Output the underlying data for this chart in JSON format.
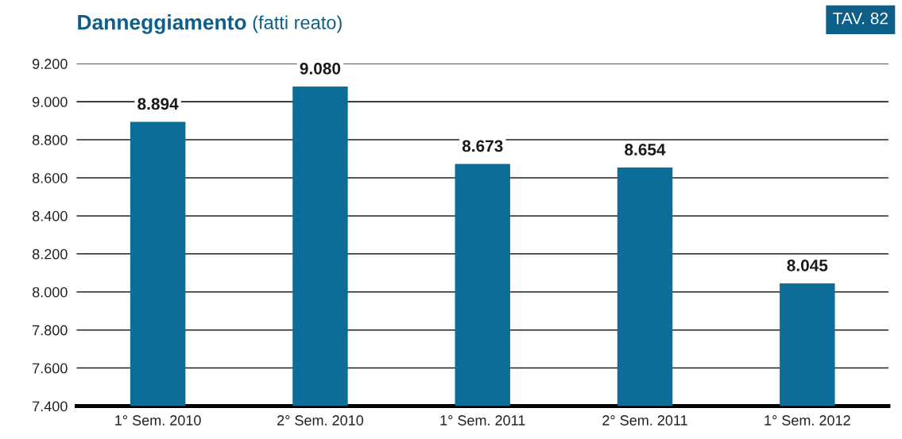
{
  "chart_data": {
    "type": "bar",
    "title": "Danneggiamento",
    "subtitle": "(fatti reato)",
    "annotations": [
      "TAV. 82"
    ],
    "categories": [
      "1° Sem. 2010",
      "2° Sem. 2010",
      "1° Sem. 2011",
      "2° Sem. 2011",
      "1° Sem. 2012"
    ],
    "values": [
      8894,
      9080,
      8673,
      8654,
      8045
    ],
    "value_labels": [
      "8.894",
      "9.080",
      "8.673",
      "8.654",
      "8.045"
    ],
    "color": "#0d6d99",
    "ylim": [
      7400,
      9200
    ],
    "yticks": [
      {
        "value": 7400,
        "label": "7.400"
      },
      {
        "value": 7600,
        "label": "7.600"
      },
      {
        "value": 7800,
        "label": "7.800"
      },
      {
        "value": 8000,
        "label": "8.000"
      },
      {
        "value": 8200,
        "label": "8.200"
      },
      {
        "value": 8400,
        "label": "8.400"
      },
      {
        "value": 8600,
        "label": "8.600"
      },
      {
        "value": 8800,
        "label": "8.800"
      },
      {
        "value": 9000,
        "label": "9.000"
      },
      {
        "value": 9200,
        "label": "9.200"
      }
    ],
    "grid": "y"
  }
}
